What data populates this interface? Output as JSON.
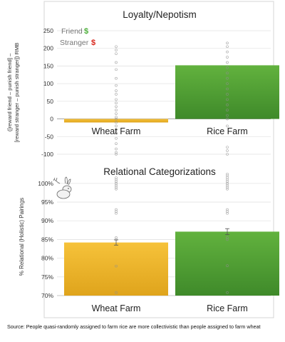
{
  "chart_data": [
    {
      "type": "bar",
      "title": "Loyalty/Nepotism",
      "ylabel": "([reward friend – punish friend] – [reward stranger – punish stranger]) RMB",
      "categories": [
        "Wheat Farm",
        "Rice Farm"
      ],
      "values": [
        -10,
        152
      ],
      "ylim": [
        -100,
        250
      ],
      "yticks": [
        "250",
        "200",
        "150",
        "100",
        "50",
        "0",
        "-50",
        "-100"
      ],
      "bar_colors": [
        "#f2b92a",
        "#5aaa3c"
      ],
      "legend": [
        {
          "word": "Friend",
          "symbol": "$",
          "symbol_color": "#4caf3a"
        },
        {
          "word": "Stranger",
          "symbol": "$",
          "symbol_color": "#d9261c"
        }
      ],
      "legend_position": "top-left",
      "individual_points": [
        {
          "category": "Wheat Farm",
          "values": [
            205,
            195,
            185,
            160,
            140,
            115,
            95,
            80,
            70,
            55,
            45,
            35,
            25,
            15,
            5,
            0,
            -10,
            -20,
            -30,
            -40,
            -55,
            -70,
            -85,
            -95,
            -100
          ]
        },
        {
          "category": "Rice Farm",
          "values": [
            215,
            205,
            190,
            175,
            160,
            145,
            130,
            115,
            100,
            85,
            70,
            55,
            40,
            25,
            10,
            0,
            -20,
            -80,
            -90,
            -100
          ]
        }
      ]
    },
    {
      "type": "bar",
      "title": "Relational Categorizations",
      "ylabel": "% Relational (Holistic) Pairings",
      "categories": [
        "Wheat Farm",
        "Rice Farm"
      ],
      "values": [
        84.2,
        87.1
      ],
      "error": [
        0.7,
        0.8
      ],
      "ylim": [
        70,
        101.5
      ],
      "yticks": [
        "100%",
        "95%",
        "90%",
        "85%",
        "80%",
        "75%",
        "70%"
      ],
      "bar_colors": [
        "#f2b92a",
        "#5aaa3c"
      ],
      "individual_points": [
        {
          "category": "Wheat Farm",
          "values": [
            101.5,
            101,
            100.5,
            100,
            99.5,
            99,
            98.5,
            93,
            92.5,
            92,
            85.5,
            85,
            77.9,
            70.8
          ]
        },
        {
          "category": "Rice Farm",
          "values": [
            102.5,
            102,
            101.5,
            101,
            100.5,
            100,
            99.5,
            99,
            98.5,
            93,
            92.5,
            92,
            85.5,
            85,
            78,
            70.8
          ]
        }
      ]
    }
  ],
  "source_text": "Source: People quasi-randomly assigned to farm rice are more collectivistic than people assigned to farm wheat",
  "decoration_icon": "bunny-icon"
}
